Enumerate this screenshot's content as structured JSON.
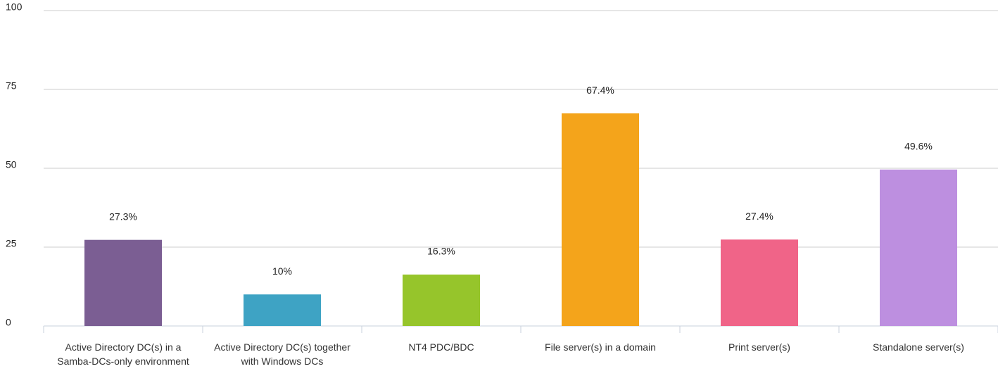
{
  "chart_data": {
    "type": "bar",
    "categories": [
      "Active Directory DC(s) in a Samba-DCs-only environment",
      "Active Directory DC(s) together with Windows DCs",
      "NT4 PDC/BDC",
      "File server(s) in a domain",
      "Print server(s)",
      "Standalone server(s)"
    ],
    "values": [
      27.3,
      10,
      16.3,
      67.4,
      27.4,
      49.6
    ],
    "value_labels": [
      "27.3%",
      "10%",
      "16.3%",
      "67.4%",
      "27.4%",
      "49.6%"
    ],
    "colors": [
      "#7b5e93",
      "#3ea3c4",
      "#96c52b",
      "#f4a41b",
      "#f06488",
      "#bd8fe0"
    ],
    "ylim": [
      0,
      100
    ],
    "yticks": [
      0,
      25,
      50,
      75,
      100
    ],
    "grid": true
  }
}
